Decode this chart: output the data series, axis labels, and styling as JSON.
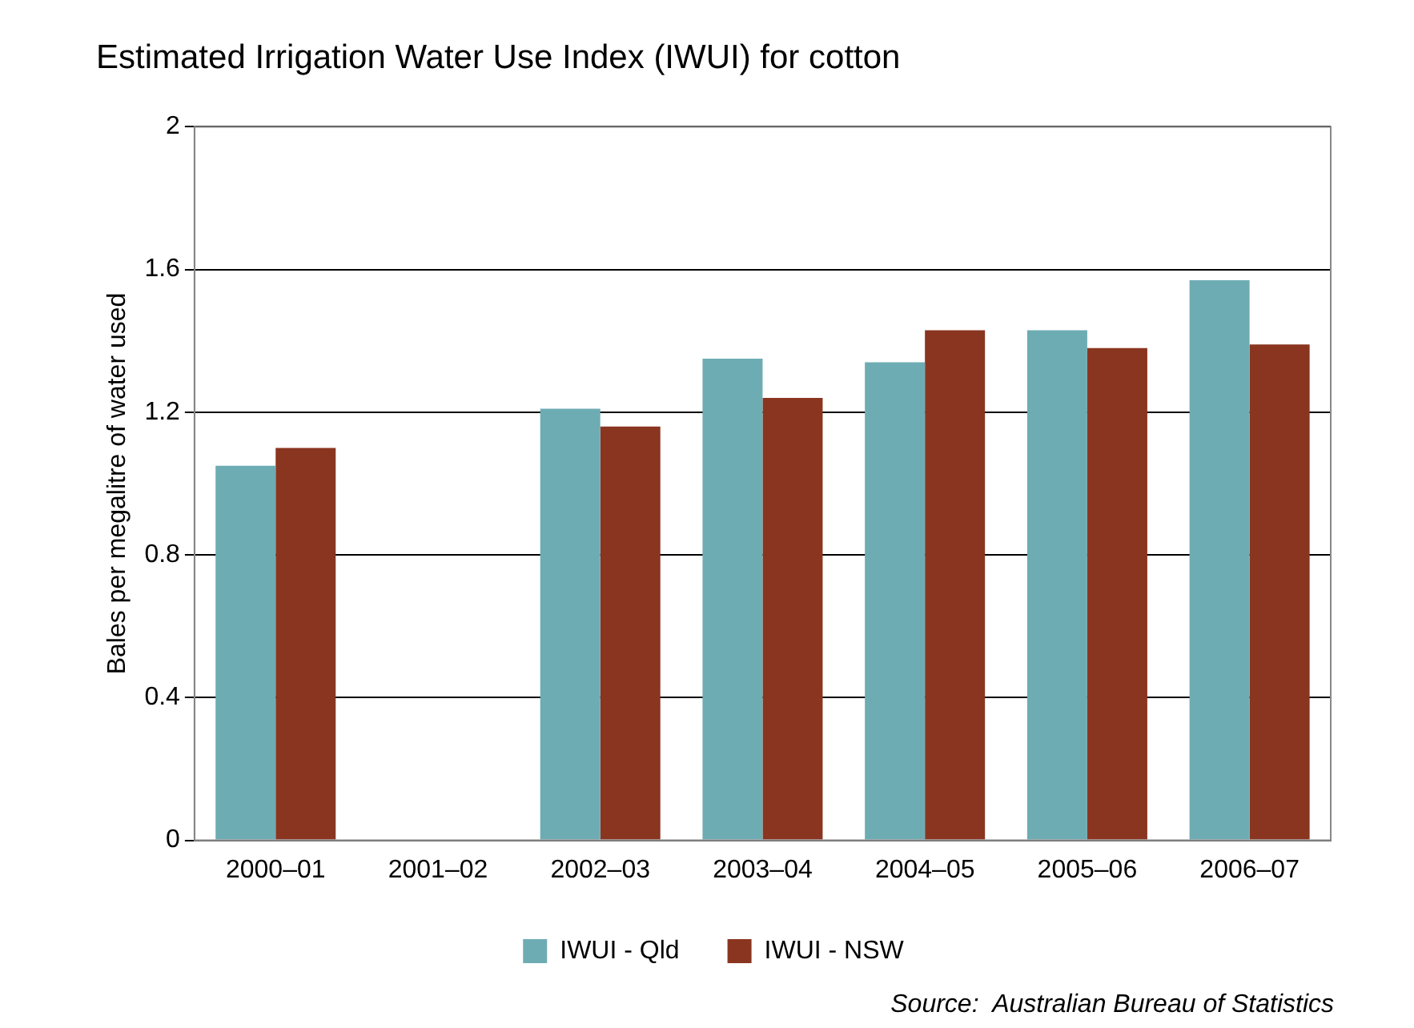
{
  "chart_data": {
    "type": "bar",
    "title": "Estimated Irrigation Water Use Index (IWUI) for cotton",
    "ylabel": "Bales per megalitre of water used",
    "categories": [
      "2000–01",
      "2001–02",
      "2002–03",
      "2003–04",
      "2004–05",
      "2005–06",
      "2006–07"
    ],
    "series": [
      {
        "name": "IWUI - Qld",
        "color": "#6eacb4",
        "values": [
          1.05,
          null,
          1.21,
          1.35,
          1.34,
          1.43,
          1.57
        ]
      },
      {
        "name": "IWUI - NSW",
        "color": "#8a3520",
        "values": [
          1.1,
          null,
          1.16,
          1.24,
          1.43,
          1.38,
          1.39
        ]
      }
    ],
    "ylim": [
      0,
      2
    ],
    "yticks": [
      0,
      0.4,
      0.8,
      1.2,
      1.6,
      2
    ],
    "grid": "y",
    "legend": "bottom",
    "annotations": [
      "Source:  Australian Bureau of Statistics"
    ]
  }
}
